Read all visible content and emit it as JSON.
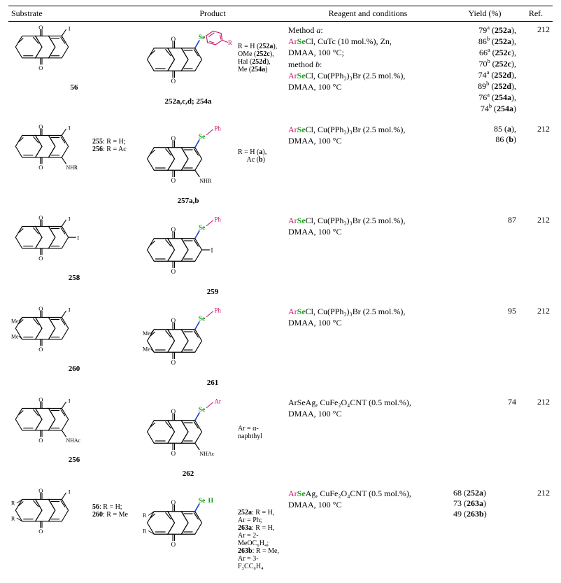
{
  "colors": {
    "se": "#1a9e1a",
    "ar": "#c61a6c",
    "bond": "#1a3fd1",
    "text": "#000000",
    "bg": "#ffffff",
    "rule": "#000000"
  },
  "typography": {
    "body_family": "Times New Roman, serif",
    "body_size_pt": 10,
    "label_size_pt": 9
  },
  "headers": {
    "substrate": "Substrate",
    "product": "Product",
    "reagent": "Reagent and conditions",
    "yield": "Yield (%)",
    "ref": "Ref."
  },
  "rows": [
    {
      "substrate_label": "56",
      "product_caption_bold": "252a,c,d; 254a",
      "product_r_note": "R = H (252a),\nOMe (252c),\nHal (252d),\nMe (254a)",
      "reagent_lines": [
        {
          "plain": "Method ",
          "ital": "a",
          "rest": ":"
        },
        {
          "ar": "Ar",
          "se": "Se",
          "rest": "Cl, CuTc (10 mol.%), Zn,"
        },
        {
          "rest": "DMAA, 100 °C;"
        },
        {
          "plain": "method ",
          "ital": "b",
          "rest": ":"
        },
        {
          "ar": "Ar",
          "se": "Se",
          "rest": "Cl, Cu(PPh₃)₃Br (2.5 mol.%),"
        },
        {
          "rest": "DMAA, 100 °C"
        }
      ],
      "yields": [
        {
          "v": "79",
          "sup": "a",
          "code": "252a"
        },
        {
          "v": "86",
          "sup": "b",
          "code": "252a"
        },
        {
          "v": "66",
          "sup": "a",
          "code": "252c"
        },
        {
          "v": "70",
          "sup": "b",
          "code": "252c"
        },
        {
          "v": "74",
          "sup": "a",
          "code": "252d"
        },
        {
          "v": "89",
          "sup": "b",
          "code": "252d"
        },
        {
          "v": "76",
          "sup": "a",
          "code": "254a"
        },
        {
          "v": "74",
          "sup": "b",
          "code": "254a"
        }
      ],
      "ref": "212"
    },
    {
      "substrate_label": "255: R = H;\n256: R = Ac",
      "substrate_extra": "NHR",
      "product_caption_bold": "257a,b",
      "product_r_note": "R = H (a),\nAc (b)",
      "product_extra": "NHR",
      "reagent_lines": [
        {
          "ar": "Ar",
          "se": "Se",
          "rest": "Cl, Cu(PPh₃)₃Br (2.5 mol.%),"
        },
        {
          "rest": "DMAA, 100 °C"
        }
      ],
      "yields": [
        {
          "v": "85",
          "code": "a",
          "paren_bold": false
        },
        {
          "v": "86",
          "code": "b",
          "paren_bold": false
        }
      ],
      "ref": "212"
    },
    {
      "substrate_label": "258",
      "product_caption_bold": "259",
      "reagent_lines": [
        {
          "ar": "Ar",
          "se": "Se",
          "rest": "Cl, Cu(PPh₃)₃Br (2.5 mol.%),"
        },
        {
          "rest": "DMAA, 100 °C"
        }
      ],
      "yields": [
        {
          "v": "87"
        }
      ],
      "ref": "212"
    },
    {
      "substrate_label": "260",
      "substrate_me": true,
      "product_caption_bold": "261",
      "product_me": true,
      "reagent_lines": [
        {
          "ar": "Ar",
          "se": "Se",
          "rest": "Cl, Cu(PPh₃)₃Br (2.5 mol.%),"
        },
        {
          "rest": "DMAA, 100 °C"
        }
      ],
      "yields": [
        {
          "v": "95"
        }
      ],
      "ref": "212"
    },
    {
      "substrate_label": "256",
      "substrate_extra": "NHAc",
      "product_caption_bold": "262",
      "product_ar_note": "Ar = α-naphthyl",
      "product_extra": "NHAc",
      "reagent_lines": [
        {
          "rest": "ArSeAg, CuFe₂O₄CNT (0.5 mol.%),"
        },
        {
          "rest": "DMAA, 100 °C"
        }
      ],
      "yields": [
        {
          "v": "74"
        }
      ],
      "ref": "212"
    },
    {
      "substrate_label": "56: R = H;\n260: R = Me",
      "substrate_rr": true,
      "product_caption_lines": [
        "252a: R = H, Ar = Ph;",
        "263a: R = H, Ar = 2-MeOC₆H₄;",
        "263b: R = Me, Ar = 3-F₃CC₆H₄"
      ],
      "product_rr": true,
      "reagent_lines": [
        {
          "ar": "Ar",
          "se": "Se",
          "rest": "Ag, CuFe₂O₄CNT (0.5 mol.%),"
        },
        {
          "rest": "DMAA, 100 °C"
        }
      ],
      "yields": [
        {
          "v": "68",
          "code": "252a",
          "paren": false
        },
        {
          "v": "73",
          "code": "263a",
          "paren": false
        },
        {
          "v": "49",
          "code": "263b",
          "paren": false
        }
      ],
      "ref": "212"
    }
  ]
}
